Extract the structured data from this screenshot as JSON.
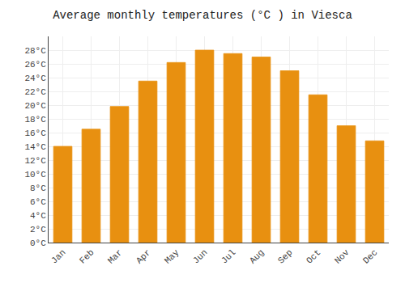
{
  "chart_data": {
    "type": "bar",
    "title": "Average monthly temperatures (°C ) in Viesca",
    "categories": [
      "Jan",
      "Feb",
      "Mar",
      "Apr",
      "May",
      "Jun",
      "Jul",
      "Aug",
      "Sep",
      "Oct",
      "Nov",
      "Dec"
    ],
    "values": [
      14.0,
      16.5,
      19.8,
      23.5,
      26.2,
      28.0,
      27.5,
      27.0,
      25.0,
      21.5,
      17.0,
      14.8
    ],
    "color": "#E89010",
    "ylim": [
      0,
      30
    ],
    "yticks": [
      {
        "value": 0,
        "label": "0°C"
      },
      {
        "value": 2,
        "label": "2°C"
      },
      {
        "value": 4,
        "label": "4°C"
      },
      {
        "value": 6,
        "label": "6°C"
      },
      {
        "value": 8,
        "label": "8°C"
      },
      {
        "value": 10,
        "label": "10°C"
      },
      {
        "value": 12,
        "label": "12°C"
      },
      {
        "value": 14,
        "label": "14°C"
      },
      {
        "value": 16,
        "label": "16°C"
      },
      {
        "value": 18,
        "label": "18°C"
      },
      {
        "value": 20,
        "label": "20°C"
      },
      {
        "value": 22,
        "label": "22°C"
      },
      {
        "value": 24,
        "label": "24°C"
      },
      {
        "value": 26,
        "label": "26°C"
      },
      {
        "value": 28,
        "label": "28°C"
      }
    ],
    "grid": true
  }
}
